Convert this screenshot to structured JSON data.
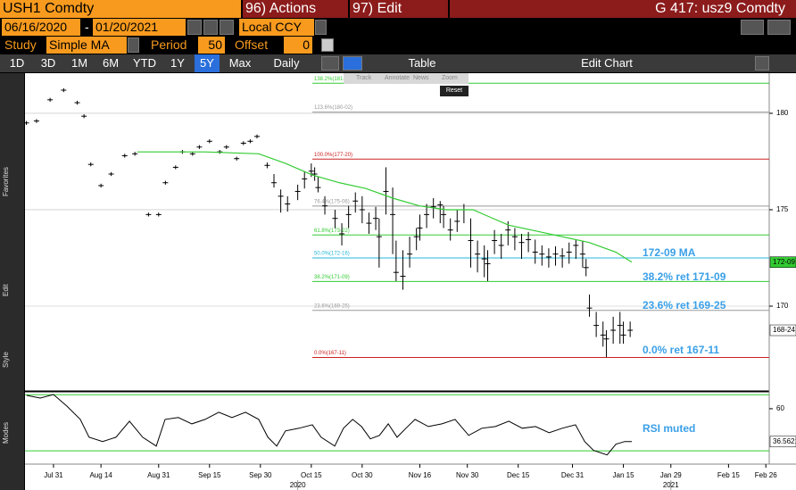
{
  "header": {
    "ticker": "USH1 Comdty",
    "actions": "96) Actions",
    "edit": "97) Edit",
    "graph": "G 417: usz9 Comdty",
    "start_date": "06/16/2020",
    "date_separator": "-",
    "end_date": "01/20/2021",
    "currency": "Local CCY",
    "study_label": "Study",
    "study": "Simple MA",
    "period_label": "Period",
    "period": 50,
    "offset_label": "Offset",
    "offset": 0,
    "ranges": [
      "1D",
      "3D",
      "1M",
      "6M",
      "YTD",
      "1Y",
      "5Y",
      "Max"
    ],
    "active_range": 6,
    "frequency": "Daily",
    "table": "Table",
    "edit_chart": "Edit Chart",
    "side_labels": [
      "Favorites",
      "Edit",
      "Style",
      "Modes"
    ],
    "chart_tools": [
      "Track",
      "Annotate",
      "News",
      "Zoom"
    ],
    "reset": "Reset"
  },
  "chart_data": [
    {
      "type": "ohlc",
      "color": "#000000",
      "xlim": [
        -8.4,
        211
      ],
      "ylim": [
        165.65,
        182.08
      ],
      "yticks": [
        170,
        175,
        180
      ],
      "grid": true,
      "x": [
        -8,
        -5,
        -1,
        3,
        7,
        9,
        11,
        14,
        17,
        21,
        24,
        28,
        31,
        33,
        36,
        38,
        41,
        43,
        46,
        49,
        51,
        54,
        56,
        58,
        60,
        63,
        65,
        67,
        69,
        72,
        74,
        76,
        77,
        78,
        80,
        83,
        85,
        87,
        89,
        91,
        93,
        95,
        96,
        98,
        100,
        101,
        103,
        105,
        107,
        108,
        110,
        112,
        114,
        115,
        117,
        119,
        121,
        123,
        125,
        127,
        128,
        130,
        132,
        134,
        136,
        138,
        140,
        142,
        144,
        146,
        148,
        150,
        152,
        154,
        156,
        157,
        158,
        160,
        162,
        163,
        165,
        167,
        168,
        170
      ],
      "high": [
        179.6,
        179.7,
        180.8,
        181.3,
        180.65,
        179.95,
        177.45,
        176.35,
        176.95,
        177.9,
        178.0,
        174.85,
        174.85,
        176.5,
        177.3,
        178.1,
        178.0,
        178.35,
        178.65,
        178.1,
        178.35,
        177.75,
        178.55,
        178.65,
        178.9,
        177.45,
        176.85,
        176.05,
        175.7,
        176.3,
        177.0,
        177.4,
        177.2,
        176.7,
        175.7,
        175.0,
        174.3,
        175.2,
        175.9,
        175.7,
        174.85,
        175.15,
        174.55,
        177.2,
        176.15,
        173.4,
        172.9,
        173.6,
        174.05,
        174.75,
        175.3,
        175.6,
        175.45,
        175.2,
        174.55,
        175.0,
        175.3,
        174.55,
        173.4,
        173.15,
        172.9,
        173.95,
        173.75,
        174.4,
        174.05,
        173.75,
        173.85,
        173.45,
        173.15,
        173.0,
        173.1,
        173.0,
        173.3,
        173.45,
        173.4,
        172.45,
        170.6,
        169.7,
        169.2,
        168.75,
        169.45,
        169.7,
        169.2,
        169.2
      ],
      "low": [
        179.4,
        179.5,
        180.6,
        181.1,
        180.45,
        179.75,
        177.25,
        176.15,
        176.75,
        177.7,
        177.8,
        174.65,
        174.65,
        176.3,
        177.1,
        177.9,
        177.8,
        178.15,
        178.45,
        177.9,
        178.15,
        177.55,
        178.35,
        178.45,
        178.7,
        177.15,
        176.15,
        174.85,
        174.9,
        175.5,
        176.1,
        176.7,
        176.5,
        175.9,
        174.75,
        174.05,
        173.15,
        174.05,
        174.85,
        174.3,
        173.75,
        173.95,
        172.0,
        174.75,
        172.7,
        171.3,
        170.85,
        172.0,
        172.9,
        173.4,
        174.05,
        174.55,
        174.3,
        174.05,
        173.4,
        173.85,
        174.3,
        172.0,
        171.75,
        171.5,
        171.3,
        172.7,
        172.45,
        173.15,
        172.9,
        172.45,
        172.8,
        172.2,
        172.1,
        172.0,
        172.1,
        172.0,
        172.2,
        172.45,
        172.0,
        171.55,
        169.45,
        168.4,
        167.9,
        167.35,
        168.05,
        168.05,
        168.05,
        168.4
      ],
      "close": [
        179.5,
        179.6,
        180.7,
        181.2,
        180.55,
        179.85,
        177.35,
        176.25,
        176.85,
        177.8,
        177.9,
        174.75,
        174.75,
        176.4,
        177.2,
        178.0,
        177.9,
        178.25,
        178.55,
        178.0,
        178.25,
        177.65,
        178.45,
        178.55,
        178.8,
        177.3,
        176.4,
        175.7,
        175.3,
        175.95,
        176.6,
        177.0,
        176.85,
        176.15,
        175.2,
        174.55,
        173.75,
        174.75,
        175.45,
        175.0,
        174.3,
        174.55,
        173.6,
        175.95,
        174.75,
        171.75,
        171.55,
        172.7,
        173.6,
        174.05,
        174.75,
        175.15,
        175.25,
        174.75,
        173.95,
        174.4,
        175.0,
        173.4,
        172.7,
        172.45,
        172.2,
        173.4,
        173.15,
        173.95,
        173.6,
        173.3,
        173.45,
        172.8,
        172.7,
        172.55,
        172.7,
        172.6,
        172.8,
        173.15,
        172.7,
        172.0,
        169.9,
        169.0,
        168.5,
        168.3,
        168.75,
        169.0,
        168.5,
        168.75
      ],
      "last_label": {
        "value": 168.75,
        "label": "168-24"
      },
      "ma": {
        "color": "#33cc33",
        "x": [
          24.7,
          44.7,
          60.5,
          68.4,
          76.3,
          84.2,
          92.1,
          100,
          107.9,
          115.8,
          123.7,
          127.6,
          134.2,
          142.1,
          150,
          157.9,
          165.8,
          170.5
        ],
        "values": [
          178.0,
          178.0,
          177.9,
          177.4,
          176.8,
          176.4,
          176.1,
          175.6,
          175.2,
          175.0,
          175.0,
          174.7,
          174.2,
          173.9,
          173.6,
          173.3,
          172.8,
          172.28
        ],
        "last_label": {
          "value": 172.28,
          "label": "172-09"
        }
      },
      "levels": [
        {
          "value": 181.56,
          "label": "138.2%(181-18)",
          "color": "#33cc33"
        },
        {
          "value": 180.06,
          "label": "123.6%(180-02)",
          "color": "#999999"
        },
        {
          "value": 177.625,
          "label": "100.0%(177-20)",
          "color": "#cc2222"
        },
        {
          "value": 175.19,
          "label": "76.4%(175-06)",
          "color": "#999999"
        },
        {
          "value": 173.69,
          "label": "61.8%(173-22)",
          "color": "#33cc33"
        },
        {
          "value": 172.5,
          "label": "50.0%(172-16)",
          "color": "#22b8d8"
        },
        {
          "value": 171.28,
          "label": "38.2%(171-09)",
          "color": "#33cc33"
        },
        {
          "value": 169.78,
          "label": "23.6%(169-25)",
          "color": "#999999"
        },
        {
          "value": 167.34,
          "label": "0.0%(167-11)",
          "color": "#cc2222"
        }
      ],
      "annotations": [
        "172-09 MA",
        "38.2% ret 171-09",
        "23.6% ret 169-25",
        "0.0% ret 167-11"
      ],
      "annotation_color": "#3aa0e8"
    },
    {
      "type": "line",
      "color": "#000000",
      "xlim": [
        -8.4,
        211
      ],
      "ylim": [
        21.8,
        71.4
      ],
      "yticks": [
        60
      ],
      "ref_lines": [
        70,
        30
      ],
      "ref_color": "#33cc33",
      "x": [
        -7.9,
        -3.9,
        0,
        3.9,
        7.9,
        10.5,
        14.5,
        18.4,
        22.4,
        26.3,
        30.3,
        32.9,
        36.8,
        40.8,
        44.7,
        48.7,
        52.6,
        56.6,
        60.5,
        63.2,
        65.8,
        68.4,
        72.4,
        76.3,
        78.9,
        82.9,
        85.5,
        88.2,
        90.8,
        93.4,
        96.1,
        98.7,
        101.3,
        103.9,
        106.6,
        110.5,
        114.5,
        118.4,
        122.4,
        126.3,
        130.3,
        134.2,
        138.2,
        142.1,
        146.1,
        150,
        153.9,
        156.6,
        159.2,
        163.2,
        165.8,
        168.4,
        170.5
      ],
      "values": [
        69.5,
        67.6,
        70.1,
        61.9,
        52.4,
        39.7,
        36.6,
        39.7,
        51.1,
        39.7,
        33.4,
        52.4,
        53.7,
        49.2,
        52.4,
        57.5,
        53.7,
        57.5,
        52.4,
        39.7,
        33.4,
        44.2,
        46.1,
        48.6,
        39.7,
        33.4,
        46.1,
        52.4,
        47.3,
        38.5,
        41.0,
        49.2,
        39.7,
        46.1,
        52.4,
        47.3,
        49.2,
        52.4,
        41.0,
        46.1,
        47.3,
        51.1,
        46.1,
        47.3,
        42.9,
        46.1,
        48.6,
        36.6,
        30.3,
        27.1,
        34.7,
        36.6,
        36.5621
      ],
      "last_label": {
        "value": 36.5621,
        "label": "36.5621"
      },
      "xticks": [
        {
          "value": 0,
          "label": "Jul 31"
        },
        {
          "value": 14,
          "label": "Aug 14"
        },
        {
          "value": 31,
          "label": "Aug 31"
        },
        {
          "value": 46,
          "label": "Sep 15"
        },
        {
          "value": 61,
          "label": "Sep 30"
        },
        {
          "value": 76,
          "label": "Oct 15"
        },
        {
          "value": 91,
          "label": "Oct 30"
        },
        {
          "value": 108,
          "label": "Nov 16"
        },
        {
          "value": 122,
          "label": "Nov 30"
        },
        {
          "value": 137,
          "label": "Dec 15"
        },
        {
          "value": 153,
          "label": "Dec 31"
        },
        {
          "value": 168,
          "label": "Jan 15"
        },
        {
          "value": 182,
          "label": "Jan 29"
        },
        {
          "value": 199,
          "label": "Feb 15"
        },
        {
          "value": 210,
          "label": "Feb 26"
        }
      ],
      "year_labels": [
        {
          "value": 72,
          "label": "2020"
        },
        {
          "value": 182,
          "label": "2021"
        }
      ],
      "annotations": [
        "RSI muted"
      ],
      "annotation_color": "#3aa0e8"
    }
  ]
}
